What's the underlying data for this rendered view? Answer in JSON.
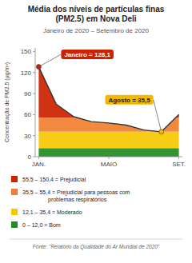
{
  "chart_data": {
    "type": "area",
    "title": "Média dos níveis de partículas finas\n(PM2.5) em Nova Deli",
    "subtitle": "Janeiro de 2020 – Setembro de 2020",
    "y_label": "Concentração de PM2.5 (μg/m³)",
    "source": "Fonte: \"Relatório da Qualidade do Ar Mundial de 2020\"",
    "categories": [
      "JAN.",
      null,
      null,
      null,
      "MAIO",
      null,
      null,
      null,
      "SET."
    ],
    "values": [
      128.1,
      75.0,
      57.0,
      50.0,
      48.0,
      45.0,
      38.0,
      35.5,
      60.0
    ],
    "color": "#333333",
    "ylim": [
      0,
      155
    ],
    "yticks": [
      0,
      30,
      60,
      90,
      120,
      150
    ],
    "grid": false,
    "zones": [
      {
        "name": "55,5 – 150,4 = Prejudicial",
        "color": "#cc2200",
        "from": 55.5
      },
      {
        "name": "35,5 – 55,4 = Prejudicial para pessoas com\nproblemas respiratórios",
        "color": "#f08030",
        "from": 35.5
      },
      {
        "name": "12,1 – 35,4 = Moderado",
        "color": "#f5c800",
        "from": 12.1
      },
      {
        "name": "0 – 12,0 = Bom",
        "color": "#228B22",
        "from": 0
      }
    ],
    "annotations": [
      {
        "text": "Janeiro = 128,1",
        "index": 0,
        "color": "#cc2200"
      },
      {
        "text": "Agosto = 35,5",
        "index": 7,
        "color": "#f5b800"
      }
    ]
  }
}
